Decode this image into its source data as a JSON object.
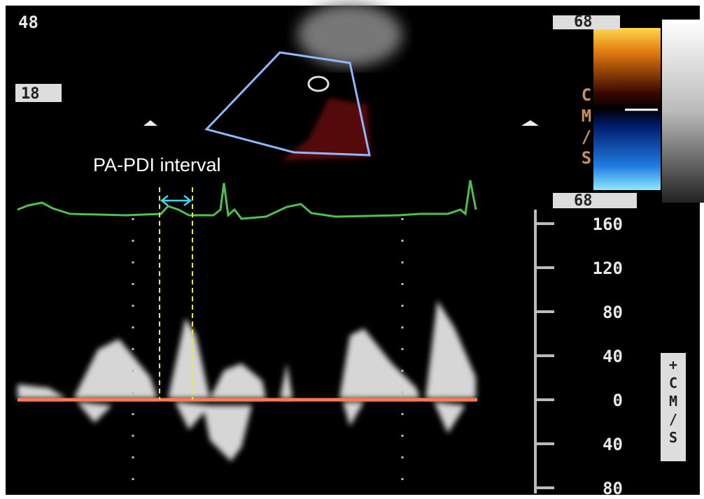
{
  "header": {
    "depth": "48",
    "gain": "18"
  },
  "color_bar": {
    "top": "68",
    "bottom": "68",
    "unit": "CM/S"
  },
  "annotation": "PA-PDI interval",
  "velocity_scale": {
    "labels": [
      "160",
      "120",
      "80",
      "40",
      "0",
      "40",
      "80"
    ],
    "unit": "+CM/S"
  }
}
